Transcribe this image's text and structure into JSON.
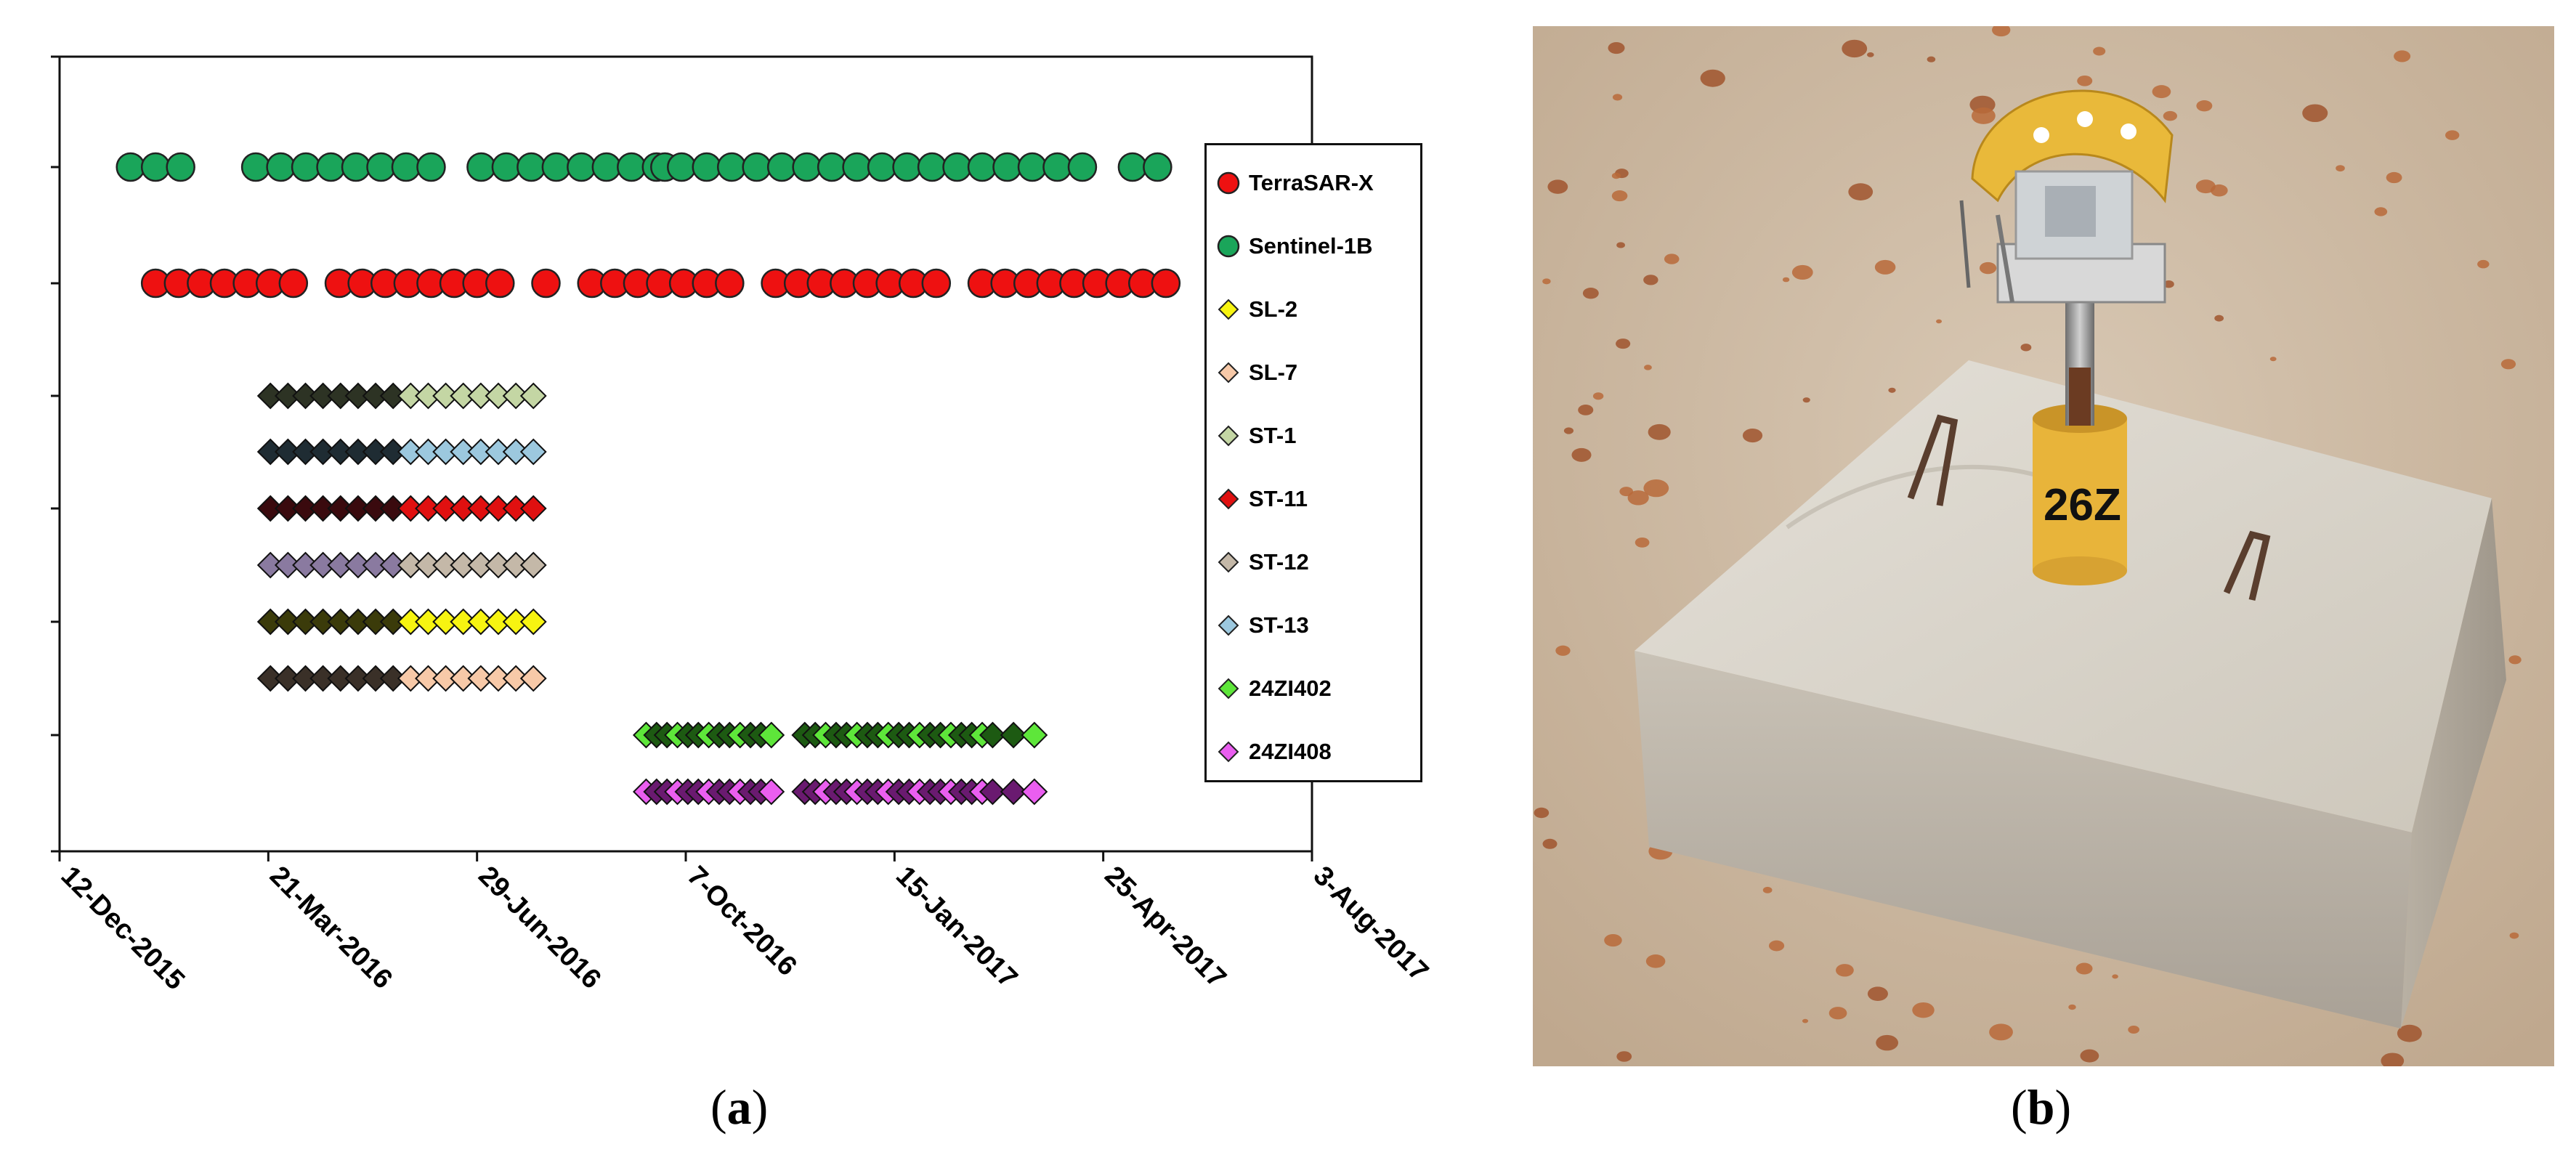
{
  "panel_a": {
    "label_open": "(",
    "label_letter": "a",
    "label_close": ")"
  },
  "panel_b": {
    "label_open": "(",
    "label_letter": "b",
    "label_close": ")",
    "marker_text": "26Z",
    "description": "Corner reflector on concrete base"
  },
  "chart_data": {
    "type": "scatter",
    "title": "",
    "xlabel": "",
    "ylabel": "",
    "x_ticks": [
      "12-Dec-2015",
      "21-Mar-2016",
      "29-Jun-2016",
      "7-Oct-2016",
      "15-Jan-2017",
      "25-Apr-2017",
      "3-Aug-2017"
    ],
    "xlim": [
      "2015-12-12",
      "2017-08-03"
    ],
    "grid": true,
    "legend_position": "right",
    "series": [
      {
        "name": "TerraSAR-X",
        "marker": "circle",
        "color": "#ee1111",
        "x": [
          "2016-01-27",
          "2016-02-07",
          "2016-02-18",
          "2016-02-29",
          "2016-03-11",
          "2016-03-22",
          "2016-04-02",
          "2016-04-24",
          "2016-05-05",
          "2016-05-16",
          "2016-05-27",
          "2016-06-07",
          "2016-06-18",
          "2016-06-29",
          "2016-07-10",
          "2016-08-01",
          "2016-08-23",
          "2016-09-03",
          "2016-09-14",
          "2016-09-25",
          "2016-10-06",
          "2016-10-17",
          "2016-10-28",
          "2016-11-19",
          "2016-11-30",
          "2016-12-11",
          "2016-12-22",
          "2017-01-02",
          "2017-01-13",
          "2017-01-24",
          "2017-02-04",
          "2017-02-26",
          "2017-03-09",
          "2017-03-20",
          "2017-03-31",
          "2017-04-11",
          "2017-04-22",
          "2017-05-03",
          "2017-05-14",
          "2017-05-25"
        ]
      },
      {
        "name": "Sentinel-1B",
        "marker": "circle",
        "color": "#1aa55a",
        "x": [
          "2016-01-15",
          "2016-01-27",
          "2016-02-08",
          "2016-03-15",
          "2016-03-27",
          "2016-04-08",
          "2016-04-20",
          "2016-05-02",
          "2016-05-14",
          "2016-05-26",
          "2016-06-07",
          "2016-07-01",
          "2016-07-13",
          "2016-07-25",
          "2016-08-06",
          "2016-08-18",
          "2016-08-30",
          "2016-09-11",
          "2016-09-23",
          "2016-09-27",
          "2016-10-05",
          "2016-10-17",
          "2016-10-29",
          "2016-11-10",
          "2016-11-22",
          "2016-12-04",
          "2016-12-16",
          "2016-12-28",
          "2017-01-09",
          "2017-01-21",
          "2017-02-02",
          "2017-02-14",
          "2017-02-26",
          "2017-03-10",
          "2017-03-22",
          "2017-04-03",
          "2017-04-15",
          "2017-05-09",
          "2017-05-21"
        ]
      },
      {
        "name": "SL-2",
        "marker": "diamond",
        "color": "#f7f411",
        "dark": "#3b3b0a",
        "x_start": "2016-03-22",
        "x_dark_end": "2016-05-24",
        "x_end": "2016-07-26",
        "points": 16
      },
      {
        "name": "SL-7",
        "marker": "diamond",
        "color": "#f7c9a8",
        "dark": "#3a3028",
        "x_start": "2016-03-22",
        "x_dark_end": "2016-05-24",
        "x_end": "2016-07-26",
        "points": 16
      },
      {
        "name": "ST-1",
        "marker": "diamond",
        "color": "#c4d6a4",
        "dark": "#2d3324",
        "x_start": "2016-03-22",
        "x_dark_end": "2016-05-24",
        "x_end": "2016-07-26",
        "points": 16
      },
      {
        "name": "ST-11",
        "marker": "diamond",
        "color": "#e01010",
        "dark": "#3a0a0e",
        "x_start": "2016-03-22",
        "x_dark_end": "2016-05-24",
        "x_end": "2016-07-26",
        "points": 16
      },
      {
        "name": "ST-12",
        "marker": "diamond",
        "color": "#c4b8a8",
        "dark": "#8a7aa0",
        "x_start": "2016-03-22",
        "x_dark_end": "2016-05-24",
        "x_end": "2016-07-26",
        "points": 16
      },
      {
        "name": "ST-13",
        "marker": "diamond",
        "color": "#9cc8de",
        "dark": "#1f2c33",
        "x_start": "2016-03-22",
        "x_dark_end": "2016-05-24",
        "x_end": "2016-07-26",
        "points": 16
      },
      {
        "name": "24ZI402",
        "marker": "diamond",
        "color": "#5ee63a",
        "dark": "#1d5a12",
        "x": [
          "2016-09-18",
          "2016-09-23",
          "2016-09-28",
          "2016-10-03",
          "2016-10-08",
          "2016-10-13",
          "2016-10-18",
          "2016-10-23",
          "2016-10-28",
          "2016-11-02",
          "2016-11-07",
          "2016-11-12",
          "2016-11-17",
          "2016-12-03",
          "2016-12-08",
          "2016-12-13",
          "2016-12-18",
          "2016-12-23",
          "2016-12-28",
          "2017-01-02",
          "2017-01-07",
          "2017-01-12",
          "2017-01-17",
          "2017-01-22",
          "2017-01-27",
          "2017-02-01",
          "2017-02-06",
          "2017-02-11",
          "2017-02-16",
          "2017-02-21",
          "2017-02-26",
          "2017-03-03",
          "2017-03-13",
          "2017-03-23"
        ]
      },
      {
        "name": "24ZI408",
        "marker": "diamond",
        "color": "#ea5ef0",
        "dark": "#6a1a70",
        "x": [
          "2016-09-18",
          "2016-09-23",
          "2016-09-28",
          "2016-10-03",
          "2016-10-08",
          "2016-10-13",
          "2016-10-18",
          "2016-10-23",
          "2016-10-28",
          "2016-11-02",
          "2016-11-07",
          "2016-11-12",
          "2016-11-17",
          "2016-12-03",
          "2016-12-08",
          "2016-12-13",
          "2016-12-18",
          "2016-12-23",
          "2016-12-28",
          "2017-01-02",
          "2017-01-07",
          "2017-01-12",
          "2017-01-17",
          "2017-01-22",
          "2017-01-27",
          "2017-02-01",
          "2017-02-06",
          "2017-02-11",
          "2017-02-16",
          "2017-02-21",
          "2017-02-26",
          "2017-03-03",
          "2017-03-13",
          "2017-03-23"
        ]
      }
    ]
  }
}
